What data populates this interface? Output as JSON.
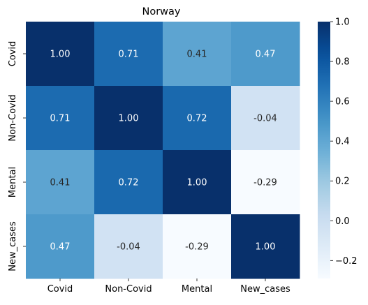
{
  "chart_data": {
    "type": "heatmap",
    "title": "Norway",
    "xlabel": "",
    "ylabel": "",
    "x_categories": [
      "Covid",
      "Non-Covid",
      "Mental",
      "New_cases"
    ],
    "y_categories": [
      "Covid",
      "Non-Covid",
      "Mental",
      "New_cases"
    ],
    "values": [
      [
        1.0,
        0.71,
        0.41,
        0.47
      ],
      [
        0.71,
        1.0,
        0.72,
        -0.04
      ],
      [
        0.41,
        0.72,
        1.0,
        -0.29
      ],
      [
        0.47,
        -0.04,
        -0.29,
        1.0
      ]
    ],
    "value_format": "0.00",
    "colormap": "Blues",
    "vmin": -0.29,
    "vmax": 1.0,
    "colorbar": {
      "ticks": [
        -0.2,
        0.0,
        0.2,
        0.4,
        0.6,
        0.8,
        1.0
      ],
      "tick_labels": [
        "−0.2",
        "0.0",
        "0.2",
        "0.4",
        "0.6",
        "0.8",
        "1.0"
      ]
    },
    "annotation_colors": {
      "light": "#ffffff",
      "dark": "#262626"
    }
  }
}
